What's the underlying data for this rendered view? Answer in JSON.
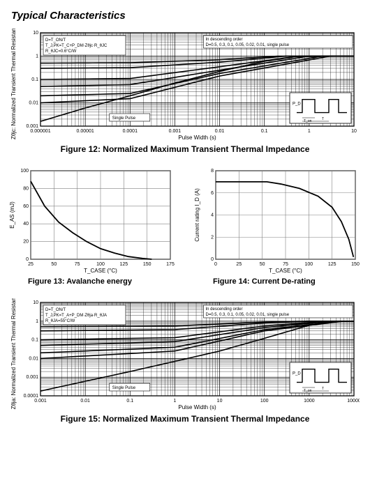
{
  "page_title": "Typical Characteristics",
  "fig12": {
    "type": "line-loglog",
    "title": "Figure 12: Normalized Maximum Transient Thermal Impedance",
    "xlabel": "Pulse Width (s)",
    "ylabel": "Zθjc: Normalized Transient Thermal Resistance",
    "xlim": [
      1e-06,
      10
    ],
    "ylim": [
      0.001,
      10
    ],
    "x_decades": [
      1e-06,
      1e-05,
      0.0001,
      0.001,
      0.01,
      0.1,
      1,
      10
    ],
    "x_tick_labels": [
      "0.000001",
      "0.00001",
      "0.0001",
      "0.001",
      "0.01",
      "0.1",
      "1",
      "10"
    ],
    "y_decades": [
      0.001,
      0.01,
      0.1,
      1,
      10
    ],
    "y_tick_labels": [
      "0.001",
      "0.01",
      "0.1",
      "1",
      "10"
    ],
    "grid_color": "#000000",
    "border_color": "#000000",
    "background_color": "#ffffff",
    "text_color": "#000000",
    "line_color": "#000000",
    "line_width": 1.6,
    "notes_top_left": [
      "D=T_ON/T",
      "T_J,PK=T_C+P_DM·Zθjc·R_θJC",
      "R_θJC=0.6°C/W"
    ],
    "notes_top_right": [
      "In descending order",
      "D=0.5, 0.3, 0.1, 0.05, 0.02, 0.01, single pulse"
    ],
    "single_pulse_label": "Single Pulse",
    "inset": {
      "pd_label": "P_D",
      "ton_label": "T_on",
      "t_label": "T"
    },
    "D_values": [
      0.5,
      0.3,
      0.1,
      0.05,
      0.02,
      0.01
    ],
    "curves": {
      "D0.5": [
        [
          1e-06,
          0.5
        ],
        [
          0.0001,
          0.52
        ],
        [
          0.01,
          0.7
        ],
        [
          0.2,
          1
        ],
        [
          10,
          1
        ]
      ],
      "D0.3": [
        [
          1e-06,
          0.3
        ],
        [
          0.0001,
          0.32
        ],
        [
          0.01,
          0.55
        ],
        [
          0.3,
          1
        ],
        [
          10,
          1
        ]
      ],
      "D0.1": [
        [
          1e-06,
          0.1
        ],
        [
          0.0001,
          0.11
        ],
        [
          0.01,
          0.35
        ],
        [
          0.6,
          1
        ],
        [
          10,
          1
        ]
      ],
      "D0.05": [
        [
          1e-06,
          0.05
        ],
        [
          0.0001,
          0.06
        ],
        [
          0.01,
          0.25
        ],
        [
          1,
          1
        ],
        [
          10,
          1
        ]
      ],
      "D0.02": [
        [
          1e-06,
          0.02
        ],
        [
          0.0001,
          0.025
        ],
        [
          0.01,
          0.18
        ],
        [
          2,
          1
        ],
        [
          10,
          1
        ]
      ],
      "D0.01": [
        [
          1e-06,
          0.01
        ],
        [
          0.0001,
          0.015
        ],
        [
          0.01,
          0.14
        ],
        [
          3,
          1
        ],
        [
          10,
          1
        ]
      ],
      "single": [
        [
          1e-06,
          0.0016
        ],
        [
          1e-05,
          0.006
        ],
        [
          0.0001,
          0.02
        ],
        [
          0.001,
          0.07
        ],
        [
          0.01,
          0.22
        ],
        [
          0.1,
          0.6
        ],
        [
          0.5,
          0.95
        ],
        [
          10,
          1
        ]
      ]
    },
    "tick_fontsize": 7,
    "label_fontsize": 8,
    "note_fontsize": 6
  },
  "fig13": {
    "type": "line",
    "title": "Figure 13: Avalanche energy",
    "xlabel": "T_CASE (°C)",
    "ylabel": "E_AS (mJ)",
    "xlim": [
      25,
      175
    ],
    "ylim": [
      0,
      100
    ],
    "x_ticks": [
      25,
      50,
      75,
      100,
      125,
      150,
      175
    ],
    "y_ticks": [
      0,
      20,
      40,
      60,
      80,
      100
    ],
    "line_color": "#000000",
    "line_width": 1.8,
    "grid_color": "#808080",
    "background_color": "#ffffff",
    "data": [
      [
        25,
        88
      ],
      [
        40,
        60
      ],
      [
        55,
        42
      ],
      [
        70,
        30
      ],
      [
        85,
        20
      ],
      [
        100,
        12
      ],
      [
        115,
        7
      ],
      [
        130,
        3
      ],
      [
        145,
        1
      ],
      [
        155,
        0
      ]
    ],
    "tick_fontsize": 7,
    "label_fontsize": 8
  },
  "fig14": {
    "type": "line",
    "title": "Figure 14: Current De-rating",
    "xlabel": "T_CASE (°C)",
    "ylabel": "Current rating I_D (A)",
    "xlim": [
      0,
      150
    ],
    "ylim": [
      0,
      8
    ],
    "x_ticks": [
      0,
      25,
      50,
      75,
      100,
      125,
      150
    ],
    "y_ticks": [
      0,
      2,
      4,
      6,
      8
    ],
    "line_color": "#000000",
    "line_width": 1.8,
    "grid_color": "#808080",
    "background_color": "#ffffff",
    "data": [
      [
        0,
        7
      ],
      [
        55,
        7
      ],
      [
        70,
        6.8
      ],
      [
        90,
        6.4
      ],
      [
        110,
        5.7
      ],
      [
        125,
        4.7
      ],
      [
        135,
        3.4
      ],
      [
        143,
        1.8
      ],
      [
        148,
        0.2
      ]
    ],
    "tick_fontsize": 7,
    "label_fontsize": 8
  },
  "fig15": {
    "type": "line-loglog",
    "title": "Figure 15: Normalized Maximum Transient Thermal Impedance",
    "xlabel": "Pulse Width (s)",
    "ylabel": "Zθja: Normalized Transient Thermal Resistance",
    "xlim": [
      0.001,
      10000
    ],
    "ylim": [
      0.0001,
      10
    ],
    "x_decades": [
      0.001,
      0.01,
      0.1,
      1,
      10,
      100,
      1000,
      10000
    ],
    "x_tick_labels": [
      "0.001",
      "0.01",
      "0.1",
      "1",
      "10",
      "100",
      "1000",
      "10000"
    ],
    "y_decades": [
      0.0001,
      0.001,
      0.01,
      0.1,
      1,
      10
    ],
    "y_tick_labels": [
      "0.0001",
      "0.001",
      "0.01",
      "0.1",
      "1",
      "10"
    ],
    "grid_color": "#000000",
    "border_color": "#000000",
    "background_color": "#ffffff",
    "line_color": "#000000",
    "line_width": 1.6,
    "notes_top_left": [
      "D=T_ON/T",
      "T_J,PK=T_A+P_DM·Zθja·R_θJA",
      "R_θJA=55°C/W"
    ],
    "notes_top_right": [
      "In descending order",
      "D=0.5, 0.3, 0.1, 0.05, 0.02, 0.01, single pulse"
    ],
    "single_pulse_label": "Single Pulse",
    "inset": {
      "pd_label": "P_D",
      "ton_label": "T_on",
      "t_label": "T"
    },
    "D_values": [
      0.5,
      0.3,
      0.1,
      0.05,
      0.02,
      0.01
    ],
    "curves": {
      "D0.5": [
        [
          0.001,
          0.5
        ],
        [
          1,
          0.55
        ],
        [
          100,
          0.9
        ],
        [
          1000,
          1
        ],
        [
          10000,
          1
        ]
      ],
      "D0.3": [
        [
          0.001,
          0.3
        ],
        [
          1,
          0.35
        ],
        [
          100,
          0.8
        ],
        [
          1500,
          1
        ],
        [
          10000,
          1
        ]
      ],
      "D0.1": [
        [
          0.001,
          0.1
        ],
        [
          1,
          0.13
        ],
        [
          100,
          0.55
        ],
        [
          2500,
          1
        ],
        [
          10000,
          1
        ]
      ],
      "D0.05": [
        [
          0.001,
          0.05
        ],
        [
          1,
          0.08
        ],
        [
          100,
          0.45
        ],
        [
          3500,
          1
        ],
        [
          10000,
          1
        ]
      ],
      "D0.02": [
        [
          0.001,
          0.02
        ],
        [
          1,
          0.04
        ],
        [
          100,
          0.35
        ],
        [
          5000,
          1
        ],
        [
          10000,
          1
        ]
      ],
      "D0.01": [
        [
          0.001,
          0.01
        ],
        [
          1,
          0.025
        ],
        [
          100,
          0.3
        ],
        [
          6000,
          1
        ],
        [
          10000,
          1
        ]
      ],
      "single": [
        [
          0.001,
          0.00018
        ],
        [
          0.01,
          0.0006
        ],
        [
          0.1,
          0.002
        ],
        [
          1,
          0.007
        ],
        [
          10,
          0.025
        ],
        [
          100,
          0.12
        ],
        [
          1000,
          0.6
        ],
        [
          4000,
          0.95
        ],
        [
          10000,
          1
        ]
      ]
    },
    "tick_fontsize": 7,
    "label_fontsize": 8,
    "note_fontsize": 6
  }
}
